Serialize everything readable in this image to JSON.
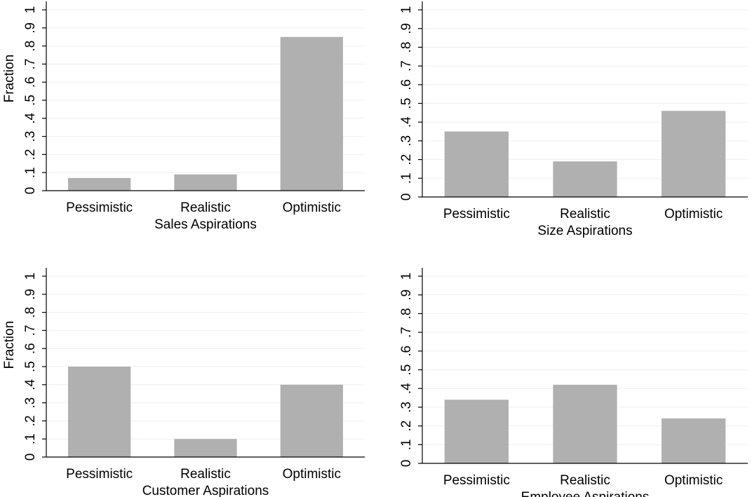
{
  "chart_data": [
    {
      "type": "bar",
      "categories": [
        "Pessimistic",
        "Realistic",
        "Optimistic"
      ],
      "values": [
        0.07,
        0.09,
        0.85
      ],
      "xlabel": "Sales Aspirations",
      "ylabel": "Fraction",
      "ylim": [
        0,
        1
      ],
      "yticks": [
        "0",
        ".1",
        ".2",
        ".3",
        ".4",
        ".5",
        ".6",
        ".7",
        ".8",
        ".9",
        "1"
      ],
      "grid": true,
      "bar_color": "#b0b0b0"
    },
    {
      "type": "bar",
      "categories": [
        "Pessimistic",
        "Realistic",
        "Optimistic"
      ],
      "values": [
        0.35,
        0.19,
        0.46
      ],
      "xlabel": "Size Aspirations",
      "ylabel": "",
      "ylim": [
        0,
        1
      ],
      "yticks": [
        "0",
        ".1",
        ".2",
        ".3",
        ".4",
        ".5",
        ".6",
        ".7",
        ".8",
        ".9",
        "1"
      ],
      "grid": true,
      "bar_color": "#b0b0b0"
    },
    {
      "type": "bar",
      "categories": [
        "Pessimistic",
        "Realistic",
        "Optimistic"
      ],
      "values": [
        0.5,
        0.1,
        0.4
      ],
      "xlabel": "Customer Aspirations",
      "ylabel": "Fraction",
      "ylim": [
        0,
        1
      ],
      "yticks": [
        "0",
        ".1",
        ".2",
        ".3",
        ".4",
        ".5",
        ".6",
        ".7",
        ".8",
        ".9",
        "1"
      ],
      "grid": true,
      "bar_color": "#b0b0b0"
    },
    {
      "type": "bar",
      "categories": [
        "Pessimistic",
        "Realistic",
        "Optimistic"
      ],
      "values": [
        0.34,
        0.42,
        0.24
      ],
      "xlabel": "Employee Aspirations",
      "ylabel": "",
      "ylim": [
        0,
        1
      ],
      "yticks": [
        "0",
        ".1",
        ".2",
        ".3",
        ".4",
        ".5",
        ".6",
        ".7",
        ".8",
        ".9",
        "1"
      ],
      "grid": true,
      "bar_color": "#b0b0b0"
    }
  ]
}
